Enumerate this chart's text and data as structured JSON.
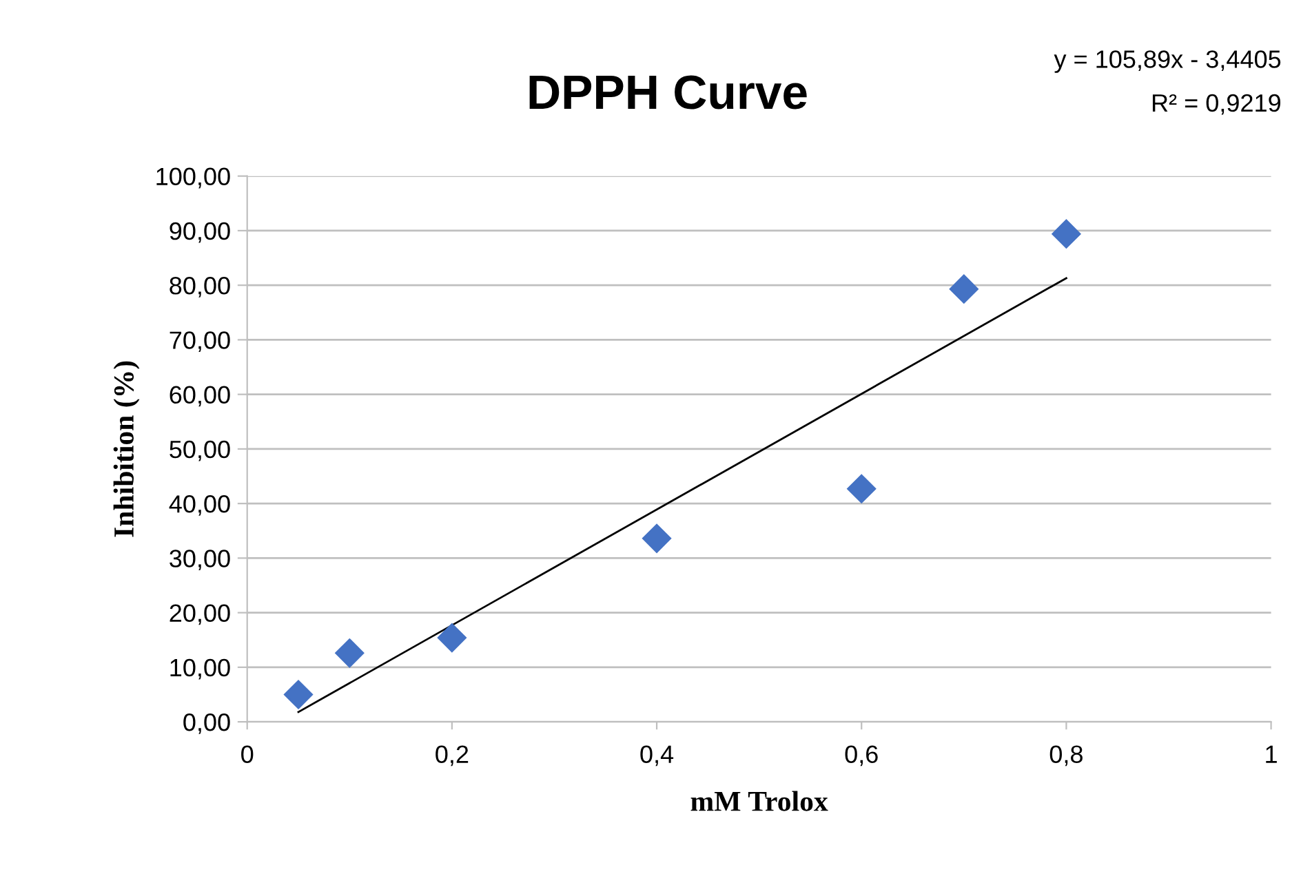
{
  "chart_data": {
    "type": "scatter",
    "title": "DPPH Curve",
    "xlabel": "mM Trolox",
    "ylabel": "Inhibition (%)",
    "annotations": [
      "y = 105,89x - 3,4405",
      "R² = 0,9219"
    ],
    "series": [
      {
        "color": "#4472c4",
        "marker": "diamond",
        "x": [
          0.05,
          0.1,
          0.2,
          0.4,
          0.6,
          0.7,
          0.8
        ],
        "values": [
          5.0,
          12.6,
          15.4,
          33.6,
          42.7,
          79.3,
          89.4
        ]
      },
      {
        "type": "line",
        "color": "#000000",
        "marker": "none",
        "line_style": "solid",
        "x": [
          0.05,
          0.8
        ],
        "values": [
          1.8,
          81.3
        ]
      }
    ],
    "xlim": [
      0,
      1
    ],
    "ylim": [
      0,
      100
    ],
    "xticks": [
      0,
      {
        "value": 0.2,
        "label": "0,2"
      },
      {
        "value": 0.4,
        "label": "0,4"
      },
      {
        "value": 0.6,
        "label": "0,6"
      },
      {
        "value": 0.8,
        "label": "0,8"
      },
      1
    ],
    "yticks": [
      {
        "value": 0,
        "label": "0,00"
      },
      {
        "value": 10,
        "label": "10,00"
      },
      {
        "value": 20,
        "label": "20,00"
      },
      {
        "value": 30,
        "label": "30,00"
      },
      {
        "value": 40,
        "label": "40,00"
      },
      {
        "value": 50,
        "label": "50,00"
      },
      {
        "value": 60,
        "label": "60,00"
      },
      {
        "value": 70,
        "label": "70,00"
      },
      {
        "value": 80,
        "label": "80,00"
      },
      {
        "value": 90,
        "label": "90,00"
      },
      {
        "value": 100,
        "label": "100,00"
      }
    ],
    "grid": "y",
    "legend": false
  }
}
